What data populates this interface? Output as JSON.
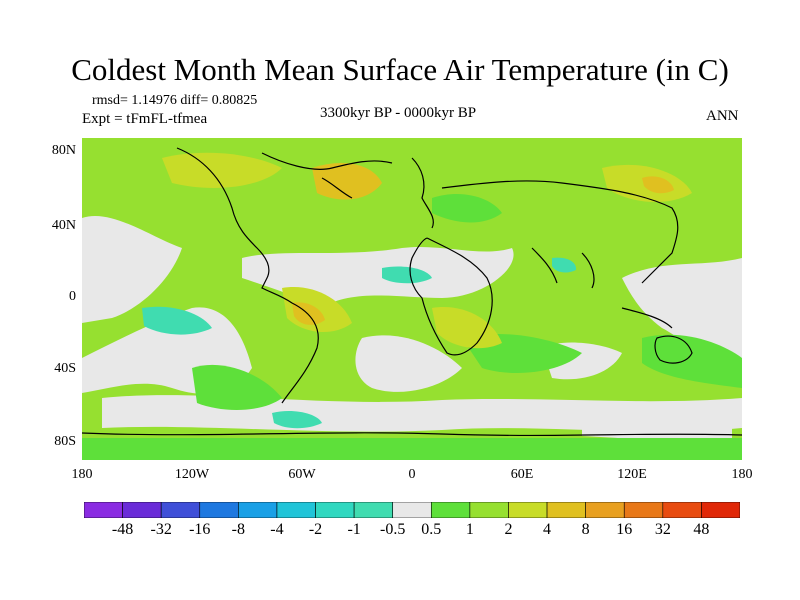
{
  "title": "Coldest Month Mean Surface Air Temperature (in C)",
  "stats": "rmsd= 1.14976 diff= 0.80825",
  "expt": "Expt = tFmFL-tfmea",
  "subtitle": "3300kyr BP - 0000kyr BP",
  "season": "ANN",
  "lat_labels": [
    "80N",
    "40N",
    "0",
    "40S",
    "80S"
  ],
  "lon_labels": [
    "180",
    "120W",
    "60W",
    "0",
    "60E",
    "120E",
    "180"
  ],
  "colorbar": {
    "labels": [
      "-48",
      "-32",
      "-16",
      "-8",
      "-4",
      "-2",
      "-1",
      "-0.5",
      "0.5",
      "1",
      "2",
      "4",
      "8",
      "16",
      "32",
      "48"
    ],
    "colors": [
      "#8a2be2",
      "#6a2bd8",
      "#3f4fd8",
      "#1e78e0",
      "#1aa0e6",
      "#20c4d8",
      "#30d8c0",
      "#40dcb0",
      "#e8e8e8",
      "#5ee03a",
      "#96e030",
      "#c8dc28",
      "#e0c020",
      "#e8a020",
      "#e87818",
      "#e84c10",
      "#e02808"
    ]
  },
  "colors": {
    "land_green": "#96e030",
    "light_green": "#5ee03a",
    "yellow": "#c8dc28",
    "orange": "#e0c020",
    "neutral": "#e8e8e8",
    "cyan": "#40dcb0",
    "coast": "#000000"
  }
}
